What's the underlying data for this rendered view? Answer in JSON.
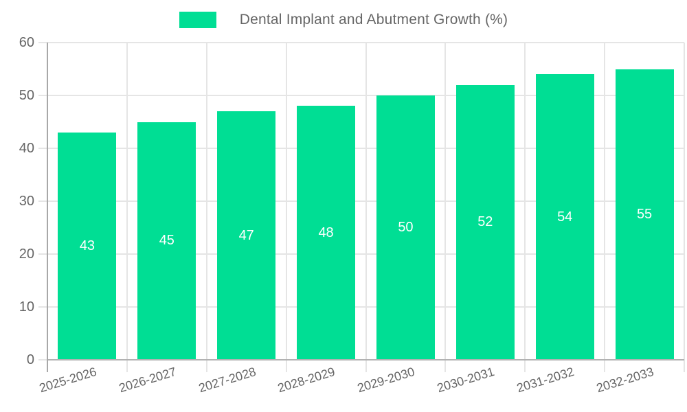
{
  "legend": {
    "label": "Dental Implant and Abutment Growth (%)"
  },
  "colors": {
    "bar": "#00DE94",
    "axis_text": "#666666",
    "gridline": "#e5e5e5",
    "axis_line": "#b2b2b2",
    "bar_value_text": "#ffffff"
  },
  "chart_data": {
    "type": "bar",
    "title": "Dental Implant and Abutment Growth (%)",
    "categories": [
      "2025-2026",
      "2026-2027",
      "2027-2028",
      "2028-2029",
      "2029-2030",
      "2030-2031",
      "2031-2032",
      "2032-2033"
    ],
    "values": [
      43,
      45,
      47,
      48,
      50,
      52,
      54,
      55
    ],
    "xlabel": "",
    "ylabel": "",
    "ylim": [
      0,
      60
    ],
    "yticks": [
      0,
      10,
      20,
      30,
      40,
      50,
      60
    ],
    "grid": true,
    "legend_position": "top-center",
    "bar_value_labels": "inside-center"
  }
}
